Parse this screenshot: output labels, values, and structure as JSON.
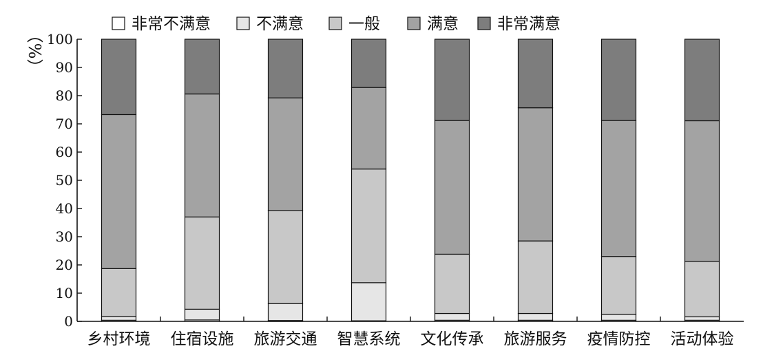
{
  "chart_data": {
    "type": "bar",
    "stacked": true,
    "title": "",
    "xlabel": "",
    "ylabel": "（%）",
    "ylim": [
      0,
      100
    ],
    "yticks": [
      "0",
      "10",
      "20",
      "30",
      "40",
      "50",
      "60",
      "70",
      "80",
      "90",
      "100"
    ],
    "grid": false,
    "legend_position": "top",
    "categories": [
      "乡村环境",
      "住宿设施",
      "旅游交通",
      "智慧系统",
      "文化传承",
      "旅游服务",
      "疫情防控",
      "活动体验"
    ],
    "series": [
      {
        "name": "非常不满意",
        "color": "#ffffff",
        "values": [
          0.4,
          0.5,
          0.3,
          0.2,
          0.4,
          0.4,
          0.4,
          0.4
        ]
      },
      {
        "name": "不满意",
        "color": "#e6e6e6",
        "values": [
          1.3,
          3.8,
          6.0,
          13.5,
          2.4,
          2.4,
          2.1,
          1.2
        ]
      },
      {
        "name": "一般",
        "color": "#c8c8c8",
        "values": [
          17.0,
          32.7,
          33.0,
          40.3,
          21.0,
          25.7,
          20.5,
          19.7
        ]
      },
      {
        "name": "满意",
        "color": "#a3a3a3",
        "values": [
          54.6,
          43.6,
          39.9,
          28.9,
          47.4,
          47.2,
          48.2,
          49.8
        ]
      },
      {
        "name": "非常满意",
        "color": "#7d7d7d",
        "values": [
          26.7,
          19.4,
          20.8,
          17.1,
          28.8,
          24.3,
          28.8,
          28.9
        ]
      }
    ]
  }
}
